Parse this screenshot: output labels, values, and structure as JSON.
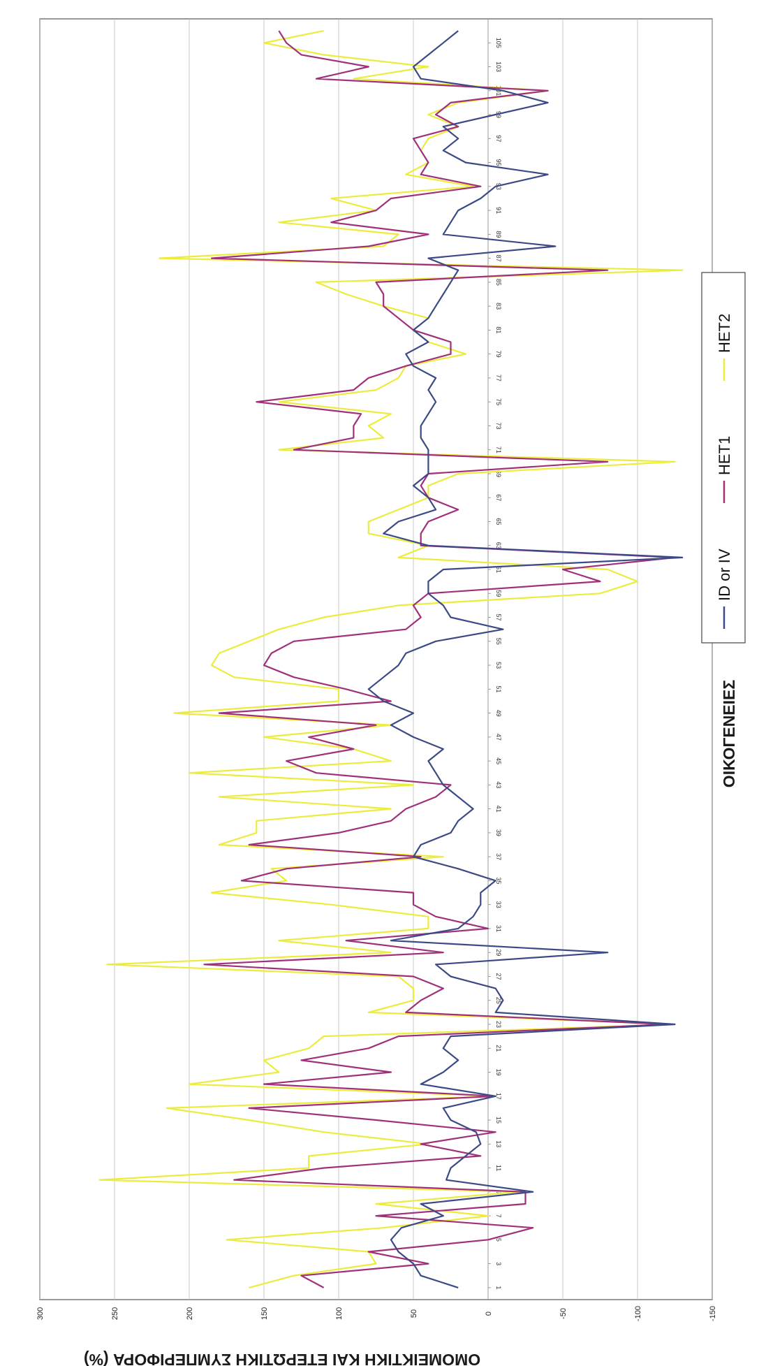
{
  "chart_data": {
    "type": "line",
    "orientation": "rotated-90",
    "xlabel": "ΟΙΚΟΓΕΝΕΙΕΣ",
    "ylabel": "ΟΜΟΜΕΙΚΤΙΚΗ ΚΑΙ ΕΤΕΡΩΤΙΚΗ ΣΥΜΠΕΡΙΦΟΡΑ (%)",
    "ylim": [
      -150,
      300
    ],
    "yticks": [
      300,
      250,
      200,
      150,
      100,
      50,
      0,
      -50,
      -100,
      -150
    ],
    "x": [
      1,
      2,
      3,
      4,
      5,
      6,
      7,
      8,
      9,
      10,
      11,
      12,
      13,
      14,
      15,
      16,
      17,
      18,
      19,
      20,
      21,
      22,
      23,
      24,
      25,
      26,
      27,
      28,
      29,
      30,
      31,
      32,
      33,
      34,
      35,
      36,
      37,
      38,
      39,
      40,
      41,
      42,
      43,
      44,
      45,
      46,
      47,
      48,
      49,
      50,
      51,
      52,
      53,
      54,
      55,
      56,
      57,
      58,
      59,
      60,
      61,
      62,
      63,
      64,
      65,
      66,
      67,
      68,
      69,
      70,
      71,
      72,
      73,
      74,
      75,
      76,
      77,
      78,
      79,
      80,
      81,
      82,
      83,
      84,
      85,
      86,
      87,
      88,
      89,
      90,
      91,
      92,
      93,
      94,
      95,
      96,
      97,
      98,
      99,
      100,
      101,
      102,
      103,
      104,
      105,
      106
    ],
    "xticks": [
      1,
      3,
      5,
      7,
      9,
      11,
      13,
      15,
      17,
      19,
      21,
      23,
      25,
      27,
      29,
      31,
      33,
      35,
      37,
      39,
      41,
      43,
      45,
      47,
      49,
      51,
      53,
      55,
      57,
      59,
      61,
      63,
      65,
      67,
      69,
      71,
      73,
      75,
      77,
      79,
      81,
      83,
      85,
      87,
      89,
      91,
      93,
      95,
      97,
      99,
      101,
      103,
      105
    ],
    "grid": "horizontal",
    "legend_position": "bottom",
    "series": [
      {
        "name": "ID or IV",
        "color": "#3b4a86",
        "values": [
          20,
          45,
          50,
          60,
          65,
          58,
          30,
          45,
          -30,
          28,
          25,
          15,
          5,
          8,
          25,
          30,
          -5,
          45,
          30,
          20,
          30,
          25,
          -125,
          -5,
          -10,
          -5,
          25,
          35,
          -80,
          65,
          20,
          10,
          5,
          5,
          -5,
          20,
          50,
          45,
          25,
          20,
          10,
          20,
          30,
          35,
          40,
          30,
          50,
          65,
          50,
          70,
          80,
          70,
          60,
          55,
          35,
          -10,
          25,
          30,
          40,
          40,
          30,
          -130,
          40,
          70,
          60,
          35,
          40,
          50,
          40,
          40,
          40,
          45,
          45,
          40,
          35,
          40,
          35,
          50,
          55,
          40,
          50,
          40,
          35,
          30,
          25,
          20,
          40,
          -45,
          30,
          25,
          20,
          5,
          -5,
          -40,
          15,
          30,
          20,
          30,
          -5,
          -40,
          -10,
          45,
          50,
          40,
          30,
          20
        ]
      },
      {
        "name": "HET1",
        "color": "#a0307a",
        "values": [
          110,
          125,
          40,
          80,
          0,
          -30,
          75,
          -25,
          -25,
          170,
          110,
          5,
          45,
          -5,
          75,
          160,
          -5,
          150,
          65,
          125,
          80,
          60,
          -120,
          55,
          45,
          30,
          50,
          190,
          30,
          95,
          0,
          35,
          50,
          50,
          165,
          135,
          45,
          160,
          100,
          65,
          55,
          35,
          25,
          115,
          135,
          90,
          120,
          75,
          180,
          65,
          95,
          130,
          150,
          145,
          130,
          55,
          45,
          50,
          40,
          -75,
          -50,
          -125,
          45,
          45,
          40,
          20,
          40,
          45,
          40,
          -80,
          130,
          90,
          90,
          85,
          155,
          90,
          80,
          55,
          25,
          25,
          50,
          60,
          70,
          70,
          75,
          -80,
          185,
          80,
          40,
          105,
          75,
          65,
          5,
          45,
          40,
          45,
          50,
          20,
          35,
          25,
          -40,
          115,
          80,
          125,
          135,
          140
        ]
      },
      {
        "name": "HET2",
        "color": "#ecec3c",
        "values": [
          160,
          130,
          75,
          80,
          175,
          70,
          0,
          75,
          -20,
          260,
          120,
          120,
          40,
          110,
          160,
          215,
          -5,
          200,
          140,
          150,
          120,
          110,
          -125,
          80,
          50,
          50,
          60,
          255,
          65,
          140,
          40,
          40,
          105,
          185,
          135,
          145,
          30,
          180,
          155,
          155,
          65,
          180,
          50,
          200,
          65,
          90,
          150,
          65,
          210,
          100,
          100,
          170,
          185,
          180,
          160,
          140,
          110,
          60,
          -75,
          -100,
          -80,
          60,
          40,
          80,
          80,
          60,
          40,
          40,
          20,
          -125,
          140,
          70,
          80,
          65,
          140,
          75,
          60,
          55,
          15,
          40,
          50,
          40,
          70,
          95,
          115,
          -130,
          220,
          70,
          60,
          140,
          75,
          105,
          10,
          55,
          40,
          45,
          40,
          20,
          40,
          20,
          -40,
          90,
          40,
          110,
          150,
          110
        ]
      }
    ]
  }
}
